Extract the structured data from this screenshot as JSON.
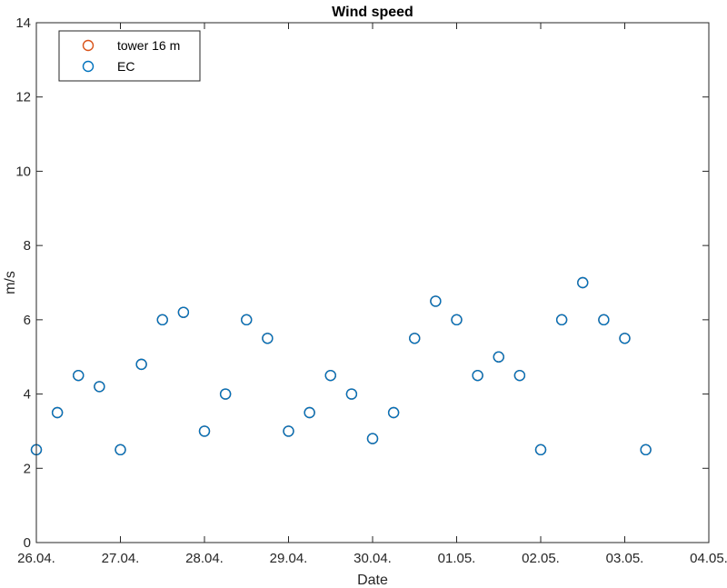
{
  "chart_data": {
    "type": "scatter",
    "title": "Wind speed",
    "xlabel": "Date",
    "ylabel": "m/s",
    "xlim": [
      "2022-04-26",
      "2022-05-04"
    ],
    "ylim": [
      0,
      14
    ],
    "x_ticks": [
      "2022-04-26",
      "2022-04-27",
      "2022-04-28",
      "2022-04-29",
      "2022-04-30",
      "2022-05-01",
      "2022-05-02",
      "2022-05-03",
      "2022-05-04"
    ],
    "x_tick_labels": [
      "26.04.",
      "27.04.",
      "28.04.",
      "29.04.",
      "30.04.",
      "01.05.",
      "02.05.",
      "03.05.",
      "04.05."
    ],
    "y_ticks": [
      0,
      2,
      4,
      6,
      8,
      10,
      12,
      14
    ],
    "y_tick_labels": [
      "0",
      "2",
      "4",
      "6",
      "8",
      "10",
      "12",
      "14"
    ],
    "grid": false,
    "legend_position": "top-left",
    "marker": "open-circle",
    "series": [
      {
        "name": "tower 16 m",
        "color": "#D95319",
        "x": [
          "2022-04-26 00:00",
          "2022-04-26 06:00",
          "2022-04-26 12:00",
          "2022-04-26 18:00",
          "2022-04-27 00:00",
          "2022-04-27 06:00",
          "2022-04-27 12:00",
          "2022-04-27 18:00",
          "2022-04-28 00:00",
          "2022-04-28 06:00",
          "2022-04-28 12:00",
          "2022-04-28 18:00",
          "2022-04-29 00:00",
          "2022-04-29 06:00",
          "2022-04-29 12:00",
          "2022-04-29 18:00",
          "2022-04-30 00:00",
          "2022-04-30 06:00",
          "2022-04-30 12:00",
          "2022-04-30 18:00",
          "2022-05-01 00:00",
          "2022-05-01 06:00",
          "2022-05-01 12:00",
          "2022-05-01 18:00",
          "2022-05-02 00:00",
          "2022-05-02 06:00",
          "2022-05-02 12:00",
          "2022-05-02 18:00",
          "2022-05-03 00:00",
          "2022-05-03 06:00"
        ],
        "y": [
          2.5,
          3.5,
          4.5,
          4.2,
          2.5,
          4.8,
          6.0,
          6.2,
          3.0,
          4.0,
          6.0,
          5.5,
          3.0,
          3.5,
          4.5,
          4.0,
          2.8,
          3.5,
          5.5,
          6.5,
          6.0,
          4.5,
          5.0,
          4.5,
          2.5,
          6.0,
          7.0,
          6.0,
          5.5,
          2.5
        ]
      },
      {
        "name": "EC",
        "color": "#0072BD",
        "x": [
          "2022-04-26 00:00",
          "2022-04-26 06:00",
          "2022-04-26 12:00",
          "2022-04-26 18:00",
          "2022-04-27 00:00",
          "2022-04-27 06:00",
          "2022-04-27 12:00",
          "2022-04-27 18:00",
          "2022-04-28 00:00",
          "2022-04-28 06:00",
          "2022-04-28 12:00",
          "2022-04-28 18:00",
          "2022-04-29 00:00",
          "2022-04-29 06:00",
          "2022-04-29 12:00",
          "2022-04-29 18:00",
          "2022-04-30 00:00",
          "2022-04-30 06:00",
          "2022-04-30 12:00",
          "2022-04-30 18:00",
          "2022-05-01 00:00",
          "2022-05-01 06:00",
          "2022-05-01 12:00",
          "2022-05-01 18:00",
          "2022-05-02 00:00",
          "2022-05-02 06:00",
          "2022-05-02 12:00",
          "2022-05-02 18:00",
          "2022-05-03 00:00",
          "2022-05-03 06:00"
        ],
        "y": [
          2.5,
          3.5,
          4.5,
          4.2,
          2.5,
          4.8,
          6.0,
          6.2,
          3.0,
          4.0,
          6.0,
          5.5,
          3.0,
          3.5,
          4.5,
          4.0,
          2.8,
          3.5,
          5.5,
          6.5,
          6.0,
          4.5,
          5.0,
          4.5,
          2.5,
          6.0,
          7.0,
          6.0,
          5.5,
          2.5
        ]
      }
    ]
  }
}
